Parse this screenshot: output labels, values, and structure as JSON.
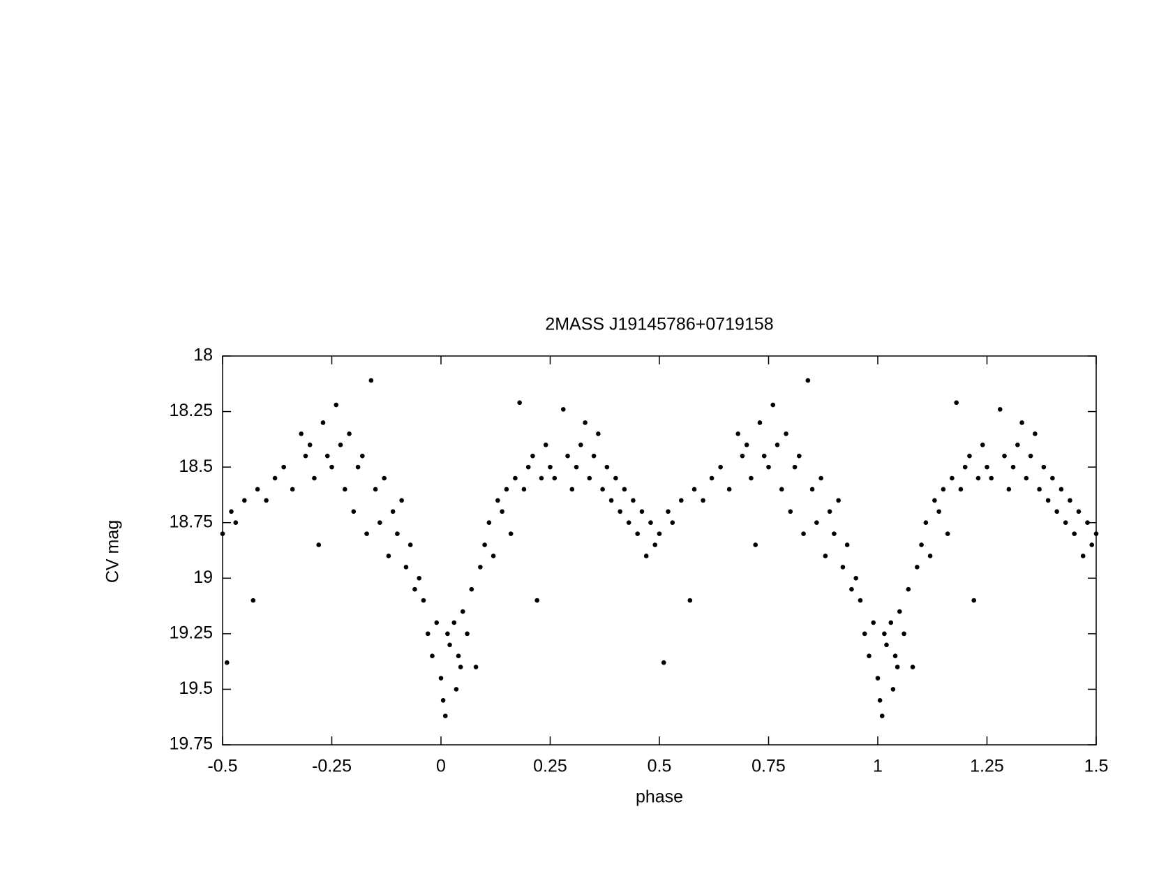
{
  "chart_data": {
    "type": "scatter",
    "title": "2MASS J19145786+0719158",
    "x_label": "phase",
    "y_label": "CV mag",
    "color": "#000000",
    "x": [
      -0.5,
      -0.49,
      -0.48,
      -0.47,
      -0.45,
      -0.43,
      -0.42,
      -0.4,
      -0.38,
      -0.36,
      -0.34,
      -0.32,
      -0.31,
      -0.3,
      -0.29,
      -0.28,
      -0.27,
      -0.26,
      -0.25,
      -0.24,
      -0.23,
      -0.22,
      -0.21,
      -0.2,
      -0.19,
      -0.18,
      -0.17,
      -0.16,
      -0.15,
      -0.14,
      -0.13,
      -0.12,
      -0.11,
      -0.1,
      -0.09,
      -0.08,
      -0.07,
      -0.06,
      -0.05,
      -0.04,
      -0.03,
      -0.02,
      -0.01,
      0,
      0.005,
      0.01,
      0.015,
      0.02,
      0.03,
      0.035,
      0.04,
      0.045,
      0.05,
      0.06,
      0.07,
      0.08,
      0.09,
      0.1,
      0.11,
      0.12,
      0.13,
      0.14,
      0.15,
      0.16,
      0.17,
      0.18,
      0.19,
      0.2,
      0.21,
      0.22,
      0.23,
      0.24,
      0.25,
      0.26,
      0.28,
      0.29,
      0.3,
      0.31,
      0.32,
      0.33,
      0.34,
      0.35,
      0.36,
      0.37,
      0.38,
      0.39,
      0.4,
      0.41,
      0.42,
      0.43,
      0.44,
      0.45,
      0.46,
      0.47,
      0.48,
      0.49,
      0.5,
      0.51,
      0.52,
      0.53,
      0.55,
      0.57,
      0.58,
      0.6,
      0.62,
      0.64,
      0.66,
      0.68,
      0.69,
      0.7,
      0.71,
      0.72,
      0.73,
      0.74,
      0.75,
      0.76,
      0.77,
      0.78,
      0.79,
      0.8,
      0.81,
      0.82,
      0.83,
      0.84,
      0.85,
      0.86,
      0.87,
      0.88,
      0.89,
      0.9,
      0.91,
      0.92,
      0.93,
      0.94,
      0.95,
      0.96,
      0.97,
      0.98,
      0.99,
      1,
      1.005,
      1.01,
      1.015,
      1.02,
      1.03,
      1.035,
      1.04,
      1.045,
      1.05,
      1.06,
      1.07,
      1.08,
      1.09,
      1.1,
      1.11,
      1.12,
      1.13,
      1.14,
      1.15,
      1.16,
      1.17,
      1.18,
      1.19,
      1.2,
      1.21,
      1.22,
      1.23,
      1.24,
      1.25,
      1.26,
      1.28,
      1.29,
      1.3,
      1.31,
      1.32,
      1.33,
      1.34,
      1.35,
      1.36,
      1.37,
      1.38,
      1.39,
      1.4,
      1.41,
      1.42,
      1.43,
      1.44,
      1.45,
      1.46,
      1.47,
      1.48,
      1.49,
      1.5
    ],
    "values": [
      18.8,
      19.38,
      18.7,
      18.75,
      18.65,
      19.1,
      18.6,
      18.65,
      18.55,
      18.5,
      18.6,
      18.35,
      18.45,
      18.4,
      18.55,
      18.85,
      18.3,
      18.45,
      18.5,
      18.22,
      18.4,
      18.6,
      18.35,
      18.7,
      18.5,
      18.45,
      18.8,
      18.11,
      18.6,
      18.75,
      18.55,
      18.9,
      18.7,
      18.8,
      18.65,
      18.95,
      18.85,
      19.05,
      19.0,
      19.1,
      19.25,
      19.35,
      19.2,
      19.45,
      19.55,
      19.62,
      19.25,
      19.3,
      19.2,
      19.5,
      19.35,
      19.4,
      19.15,
      19.25,
      19.05,
      19.4,
      18.95,
      18.85,
      18.75,
      18.9,
      18.65,
      18.7,
      18.6,
      18.8,
      18.55,
      18.21,
      18.6,
      18.5,
      18.45,
      19.1,
      18.55,
      18.4,
      18.5,
      18.55,
      18.24,
      18.45,
      18.6,
      18.5,
      18.4,
      18.3,
      18.55,
      18.45,
      18.35,
      18.6,
      18.5,
      18.65,
      18.55,
      18.7,
      18.6,
      18.75,
      18.65,
      18.8,
      18.7,
      18.9,
      18.75,
      18.85,
      18.8,
      19.38,
      18.7,
      18.75,
      18.65,
      19.1,
      18.6,
      18.65,
      18.55,
      18.5,
      18.6,
      18.35,
      18.45,
      18.4,
      18.55,
      18.85,
      18.3,
      18.45,
      18.5,
      18.22,
      18.4,
      18.6,
      18.35,
      18.7,
      18.5,
      18.45,
      18.8,
      18.11,
      18.6,
      18.75,
      18.55,
      18.9,
      18.7,
      18.8,
      18.65,
      18.95,
      18.85,
      19.05,
      19.0,
      19.1,
      19.25,
      19.35,
      19.2,
      19.45,
      19.55,
      19.62,
      19.25,
      19.3,
      19.2,
      19.5,
      19.35,
      19.4,
      19.15,
      19.25,
      19.05,
      19.4,
      18.95,
      18.85,
      18.75,
      18.9,
      18.65,
      18.7,
      18.6,
      18.8,
      18.55,
      18.21,
      18.6,
      18.5,
      18.45,
      19.1,
      18.55,
      18.4,
      18.5,
      18.55,
      18.24,
      18.45,
      18.6,
      18.5,
      18.4,
      18.3,
      18.55,
      18.45,
      18.35,
      18.6,
      18.5,
      18.65,
      18.55,
      18.7,
      18.6,
      18.75,
      18.65,
      18.8,
      18.7,
      18.9,
      18.75,
      18.85,
      18.8
    ],
    "xlim": [
      -0.5,
      1.5
    ],
    "xticks": [
      -0.5,
      -0.25,
      0,
      0.25,
      0.5,
      0.75,
      1,
      1.25,
      1.5
    ],
    "ylim": [
      19.75,
      18
    ],
    "yticks": [
      18,
      18.25,
      18.5,
      18.75,
      19,
      19.25,
      19.5,
      19.75
    ],
    "grid": false
  }
}
